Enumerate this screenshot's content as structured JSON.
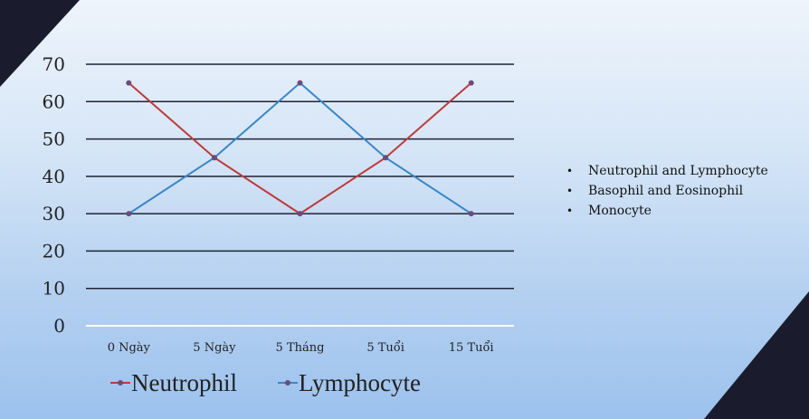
{
  "chart_data": {
    "type": "line",
    "title": "",
    "xlabel": "",
    "ylabel": "",
    "categories": [
      "0 Ngày",
      "5 Ngày",
      "5 Tháng",
      "5 Tuổi",
      "15 Tuổi"
    ],
    "ylim": [
      0,
      70
    ],
    "yticks": [
      "0",
      "10",
      "20",
      "30",
      "40",
      "50",
      "60",
      "70"
    ],
    "grid": true,
    "legend_position": "bottom",
    "series": [
      {
        "name": "Neutrophil",
        "color": "#c0393b",
        "values": [
          65,
          45,
          30,
          45,
          65
        ]
      },
      {
        "name": "Lymphocyte",
        "color": "#3a86c8",
        "values": [
          30,
          45,
          65,
          45,
          30
        ]
      }
    ]
  },
  "bullets": [
    "Neutrophil and Lymphocyte",
    "Basophil and Eosinophil",
    "Monocyte"
  ],
  "colors": {
    "corner": "#1a1c2e",
    "gridline": "#1e2233",
    "marker": "#6a4d7a"
  }
}
